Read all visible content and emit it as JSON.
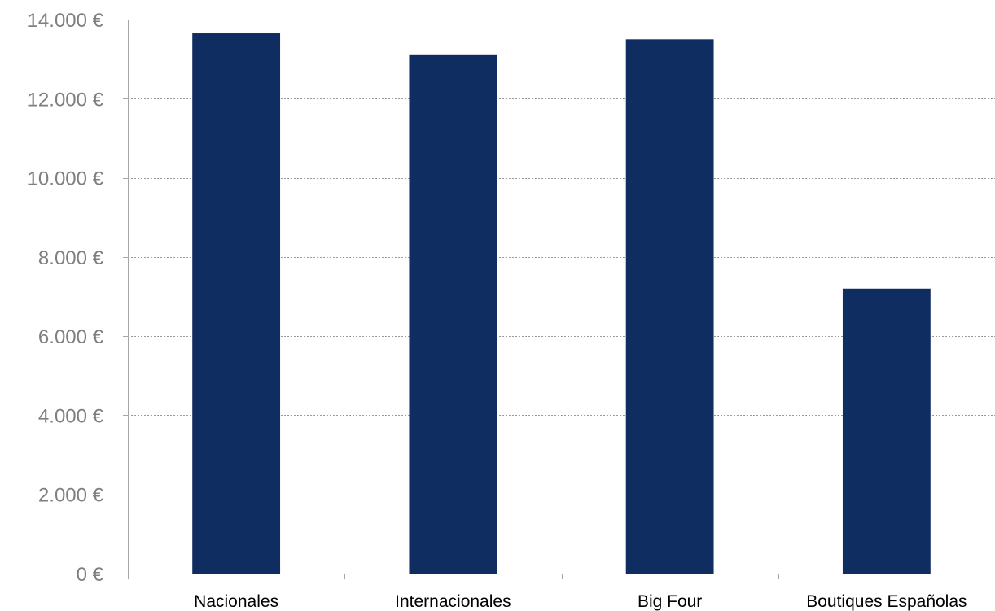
{
  "chart_data": {
    "type": "bar",
    "title": "",
    "xlabel": "",
    "ylabel": "",
    "categories": [
      "Nacionales",
      "Internacionales",
      "Big Four",
      "Boutiques Españolas"
    ],
    "values": [
      13650,
      13120,
      13500,
      7200
    ],
    "ylim": [
      0,
      14000
    ],
    "yticks": [
      0,
      2000,
      4000,
      6000,
      8000,
      10000,
      12000,
      14000
    ],
    "ytick_labels": [
      "0 €",
      "2.000 €",
      "4.000 €",
      "6.000 €",
      "8.000 €",
      "10.000 €",
      "12.000 €",
      "14.000 €"
    ],
    "grid": true,
    "legend": "none",
    "bar_color": "#102d62"
  }
}
